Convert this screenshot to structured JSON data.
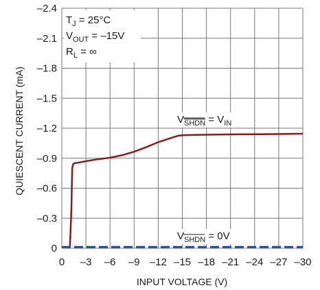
{
  "chart_data": {
    "type": "line",
    "xlabel": "INPUT VOLTAGE (V)",
    "ylabel": "QUIESCENT CURRENT (mA)",
    "xlim": [
      0,
      -30
    ],
    "ylim": [
      0,
      -2.4
    ],
    "x_ticks": [
      "0",
      "–3",
      "–6",
      "–9",
      "–12",
      "–15",
      "–18",
      "–21",
      "–24",
      "–27",
      "–30"
    ],
    "y_ticks": [
      "0",
      "–0.3",
      "–0.6",
      "–0.9",
      "–1.2",
      "–1.5",
      "–1.8",
      "–2.1",
      "–2.4"
    ],
    "grid": true,
    "conditions": {
      "tj_main": "T",
      "tj_sub": "J",
      "tj_rest": " = 25°C",
      "vout_main": "V",
      "vout_sub": "OUT",
      "vout_rest": " = –15V",
      "rl_main": "R",
      "rl_sub": "L",
      "rl_rest": " = ∞"
    },
    "series": [
      {
        "label_main": "V",
        "label_sub": "SHDN",
        "label_rest": " = V",
        "label_rest_sub": "IN",
        "color": "#8b1a1a",
        "x": [
          -1.0,
          -1.1,
          -1.2,
          -1.25,
          -1.3,
          -1.4,
          -1.6,
          -2.0,
          -3.0,
          -4.5,
          -6.0,
          -7.5,
          -9.0,
          -10.5,
          -12.0,
          -13.5,
          -14.5,
          -15.0,
          -16.0,
          -18.0,
          -21.0,
          -24.0,
          -27.0,
          -30.0
        ],
        "y": [
          0.0,
          -0.2,
          -0.4,
          -0.62,
          -0.8,
          -0.84,
          -0.85,
          -0.855,
          -0.87,
          -0.89,
          -0.905,
          -0.93,
          -0.965,
          -1.01,
          -1.06,
          -1.1,
          -1.125,
          -1.13,
          -1.132,
          -1.135,
          -1.138,
          -1.14,
          -1.142,
          -1.145
        ]
      },
      {
        "label_main": "V",
        "label_sub": "SHDN",
        "label_rest": " = 0V",
        "color": "#2b4ea0",
        "dashed": true,
        "x": [
          0,
          -30
        ],
        "y": [
          -0.01,
          -0.01
        ]
      }
    ]
  }
}
